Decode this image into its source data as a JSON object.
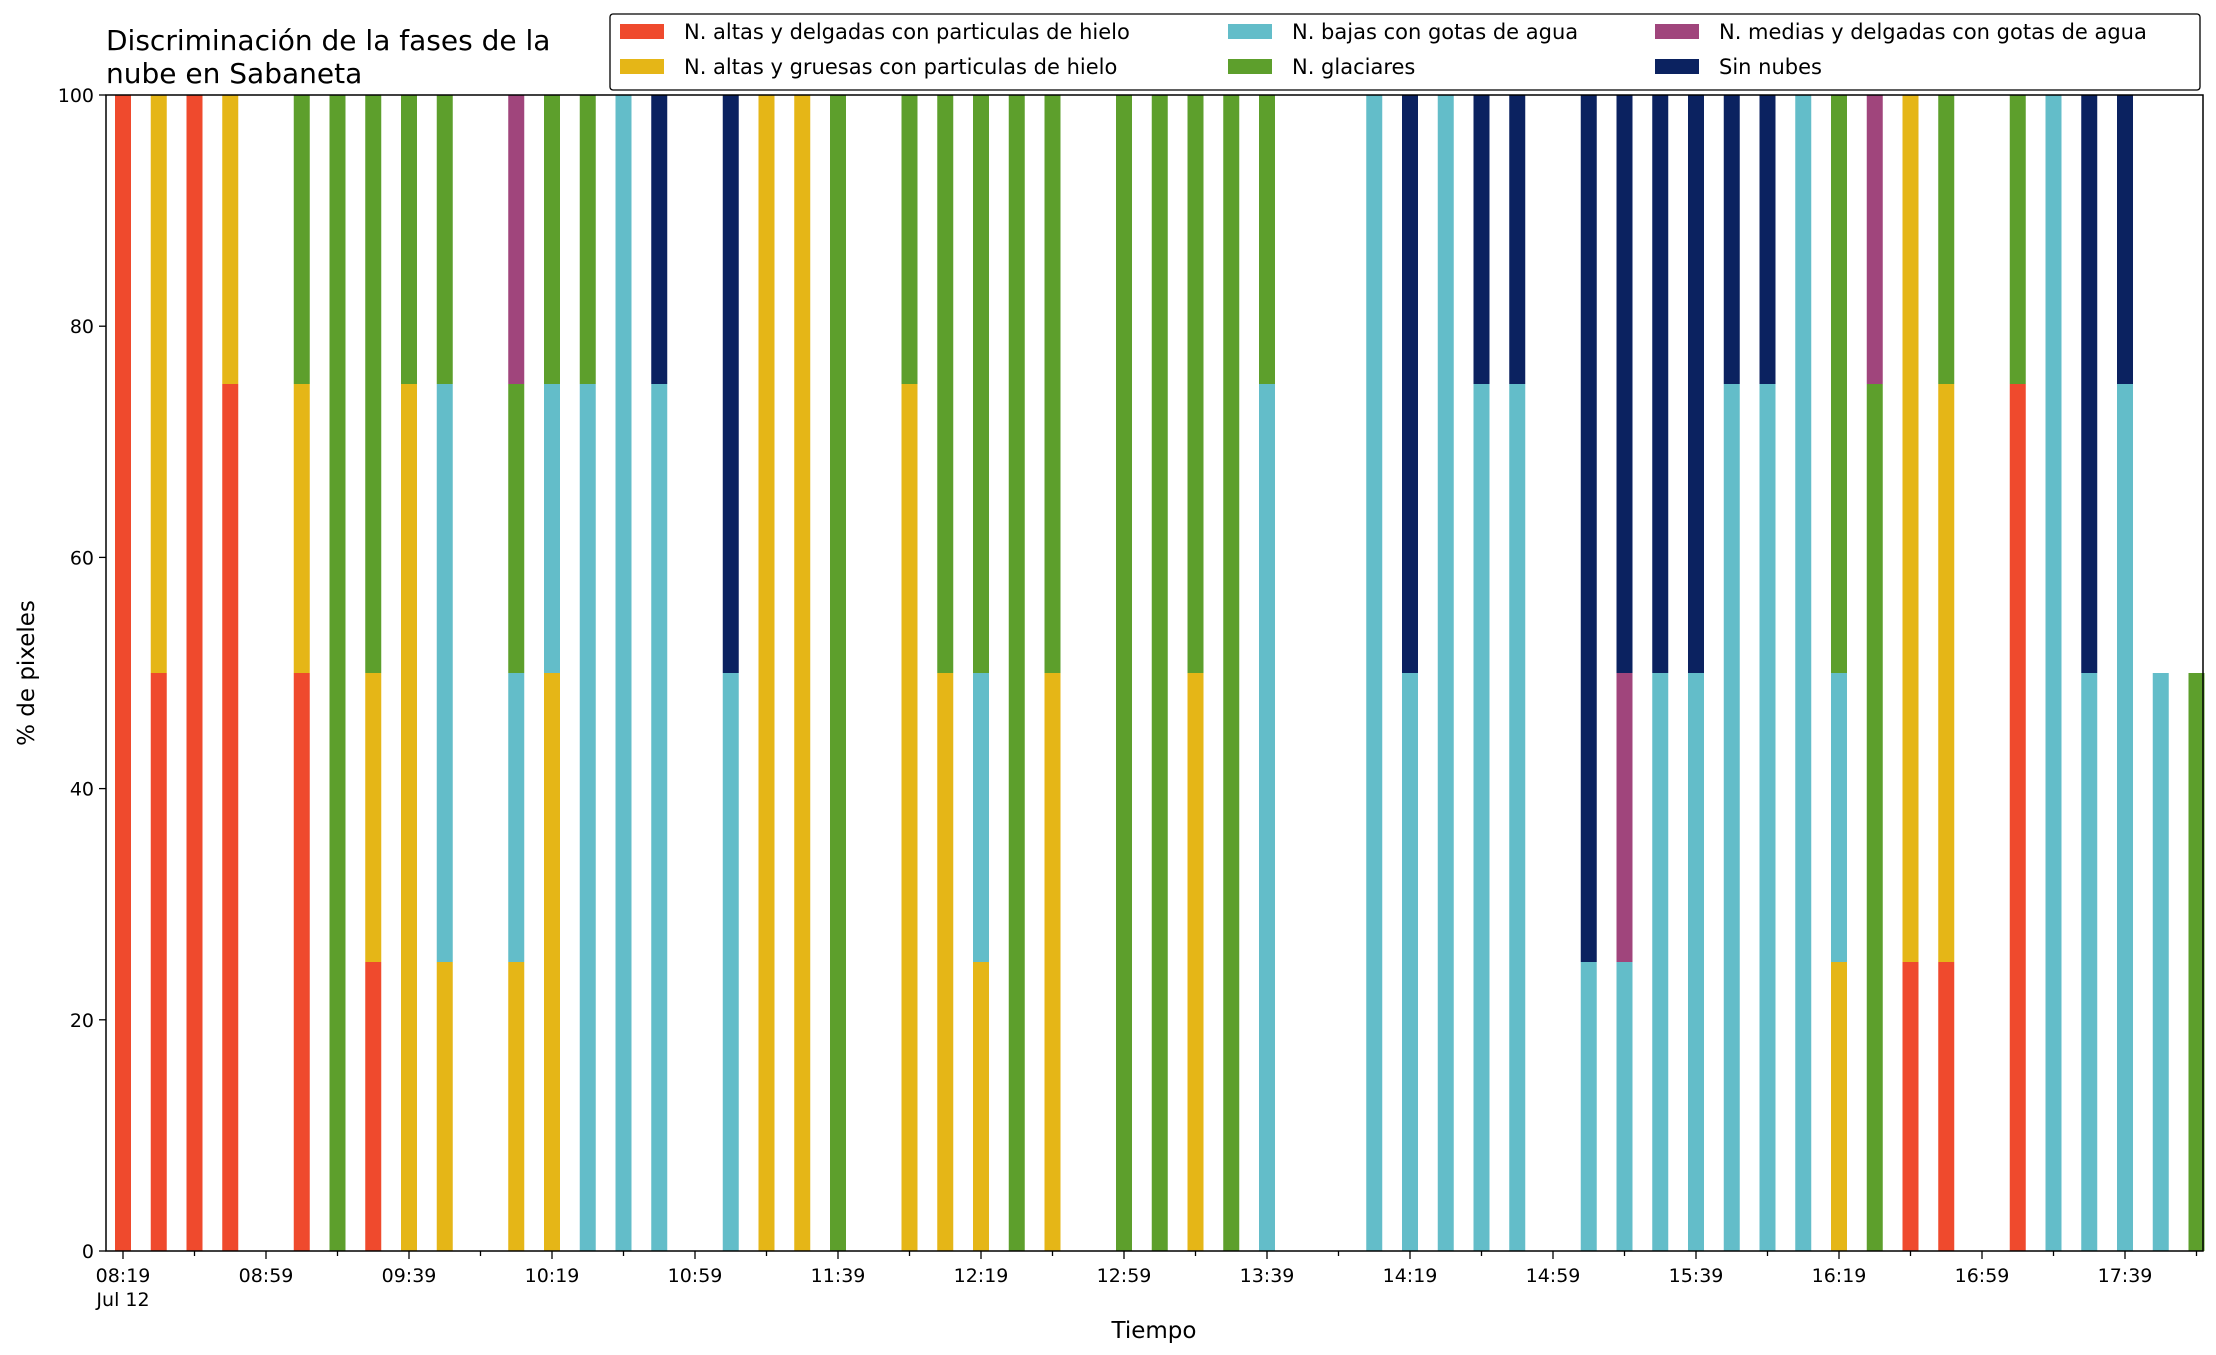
{
  "chart_data": {
    "type": "bar",
    "stacked": true,
    "title": "Discriminación de la fases de la\nnube en Sabaneta",
    "xlabel": "Tiempo",
    "ylabel": "% de pixeles",
    "ylim": [
      0,
      100
    ],
    "yticks": [
      "0",
      "20",
      "40",
      "60",
      "80",
      "100"
    ],
    "xticks": [
      "08:19\nJul 12",
      "08:59",
      "09:39",
      "10:19",
      "10:59",
      "11:39",
      "12:19",
      "12:59",
      "13:39",
      "14:19",
      "14:59",
      "15:39",
      "16:19",
      "16:59",
      "17:39"
    ],
    "legend_position": "top-right",
    "grid": false,
    "x_interval_minutes": 10,
    "categories": [
      "08:19",
      "08:29",
      "08:39",
      "08:49",
      "08:59",
      "09:09",
      "09:19",
      "09:29",
      "09:39",
      "09:49",
      "09:59",
      "10:09",
      "10:19",
      "10:29",
      "10:39",
      "10:49",
      "10:59",
      "11:09",
      "11:19",
      "11:29",
      "11:39",
      "11:49",
      "11:59",
      "12:09",
      "12:19",
      "12:29",
      "12:39",
      "12:49",
      "12:59",
      "13:09",
      "13:19",
      "13:29",
      "13:39",
      "13:49",
      "13:59",
      "14:09",
      "14:19",
      "14:29",
      "14:39",
      "14:49",
      "14:59",
      "15:09",
      "15:19",
      "15:29",
      "15:39",
      "15:49",
      "15:59",
      "16:09",
      "16:19",
      "16:29",
      "16:39",
      "16:49",
      "16:59",
      "17:09",
      "17:19",
      "17:29",
      "17:39",
      "17:49",
      "17:59"
    ],
    "series": [
      {
        "name": "N. altas y delgadas con particulas de hielo",
        "color": "#ef4a2d",
        "values": [
          100,
          50,
          100,
          75,
          0,
          50,
          0,
          25,
          0,
          0,
          0,
          0,
          0,
          0,
          0,
          0,
          0,
          0,
          0,
          0,
          0,
          0,
          0,
          0,
          0,
          0,
          0,
          0,
          0,
          0,
          0,
          0,
          0,
          0,
          0,
          0,
          0,
          0,
          0,
          0,
          0,
          0,
          0,
          0,
          0,
          0,
          0,
          0,
          0,
          0,
          25,
          25,
          0,
          75,
          0,
          0,
          0,
          0,
          0
        ]
      },
      {
        "name": "N. altas y gruesas con particulas de hielo",
        "color": "#e5b617",
        "values": [
          0,
          50,
          0,
          25,
          0,
          25,
          0,
          25,
          75,
          25,
          0,
          25,
          50,
          0,
          0,
          0,
          0,
          0,
          100,
          100,
          0,
          0,
          75,
          50,
          25,
          0,
          50,
          0,
          0,
          0,
          50,
          0,
          0,
          0,
          0,
          0,
          0,
          0,
          0,
          0,
          0,
          0,
          0,
          0,
          0,
          0,
          0,
          0,
          25,
          0,
          75,
          50,
          0,
          0,
          0,
          0,
          0,
          0,
          0
        ]
      },
      {
        "name": "N. bajas con gotas de agua",
        "color": "#63bdc9",
        "values": [
          0,
          0,
          0,
          0,
          0,
          0,
          0,
          0,
          0,
          50,
          0,
          25,
          25,
          75,
          100,
          75,
          0,
          50,
          0,
          0,
          0,
          0,
          0,
          0,
          25,
          0,
          0,
          0,
          0,
          0,
          0,
          0,
          75,
          0,
          0,
          100,
          50,
          100,
          75,
          75,
          0,
          25,
          25,
          50,
          50,
          75,
          75,
          100,
          25,
          0,
          0,
          0,
          0,
          0,
          100,
          50,
          75,
          50,
          0
        ]
      },
      {
        "name": "N. glaciares",
        "color": "#5d9f2c",
        "values": [
          0,
          0,
          0,
          0,
          0,
          25,
          100,
          50,
          25,
          25,
          0,
          25,
          25,
          25,
          0,
          0,
          0,
          0,
          0,
          0,
          100,
          0,
          25,
          50,
          50,
          100,
          50,
          0,
          100,
          100,
          50,
          100,
          25,
          0,
          0,
          0,
          0,
          0,
          0,
          0,
          0,
          0,
          0,
          0,
          0,
          0,
          0,
          0,
          50,
          75,
          0,
          25,
          0,
          25,
          0,
          0,
          0,
          0,
          50
        ]
      },
      {
        "name": "N. medias y delgadas con gotas de agua",
        "color": "#a0457c",
        "values": [
          0,
          0,
          0,
          0,
          0,
          0,
          0,
          0,
          0,
          0,
          0,
          25,
          0,
          0,
          0,
          0,
          0,
          0,
          0,
          0,
          0,
          0,
          0,
          0,
          0,
          0,
          0,
          0,
          0,
          0,
          0,
          0,
          0,
          0,
          0,
          0,
          0,
          0,
          0,
          0,
          0,
          0,
          25,
          0,
          0,
          0,
          0,
          0,
          0,
          25,
          0,
          0,
          0,
          0,
          0,
          0,
          0,
          0,
          0
        ]
      },
      {
        "name": "Sin nubes",
        "color": "#0b2260",
        "values": [
          0,
          0,
          0,
          0,
          0,
          0,
          0,
          0,
          0,
          0,
          0,
          0,
          0,
          0,
          0,
          25,
          0,
          50,
          0,
          0,
          0,
          0,
          0,
          0,
          0,
          0,
          0,
          0,
          0,
          0,
          0,
          0,
          0,
          0,
          0,
          0,
          50,
          0,
          25,
          25,
          0,
          75,
          50,
          50,
          50,
          25,
          25,
          0,
          0,
          0,
          0,
          0,
          0,
          0,
          0,
          50,
          25,
          0,
          0
        ]
      }
    ]
  }
}
